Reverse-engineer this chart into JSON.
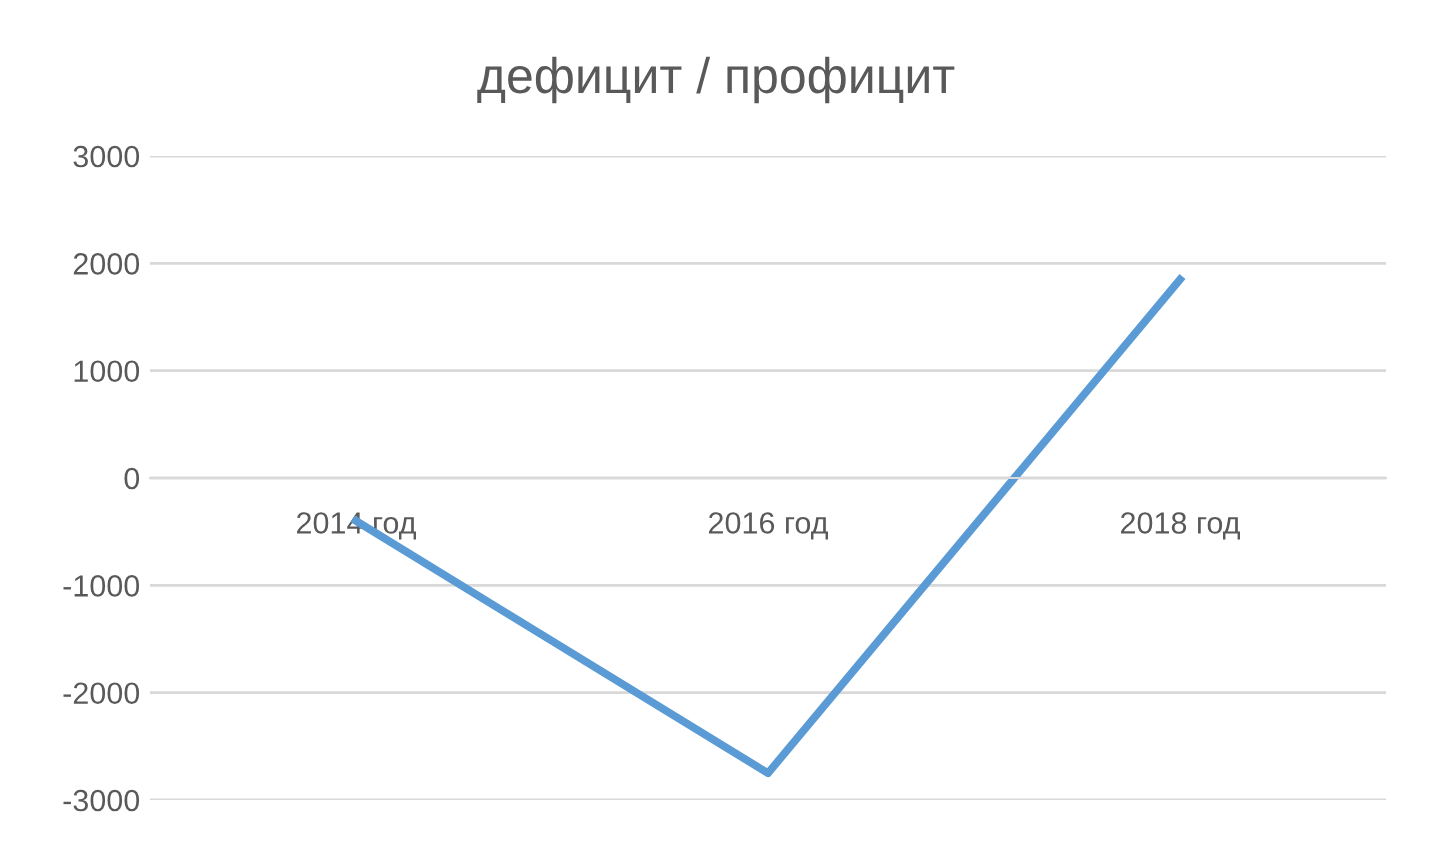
{
  "chart_data": {
    "type": "line",
    "title": "дефицит / профицит",
    "categories": [
      "2014 год",
      "2016 год",
      "2018 год"
    ],
    "series": [
      {
        "color": "#5b9bd5",
        "values": [
          -400,
          -2750,
          1850
        ]
      }
    ],
    "ylim": [
      -3000,
      3000
    ],
    "yticks": [
      -3000,
      -2000,
      -1000,
      0,
      1000,
      2000,
      3000
    ],
    "grid": "y",
    "legend": false,
    "marker": "none",
    "line_style": "solid"
  }
}
